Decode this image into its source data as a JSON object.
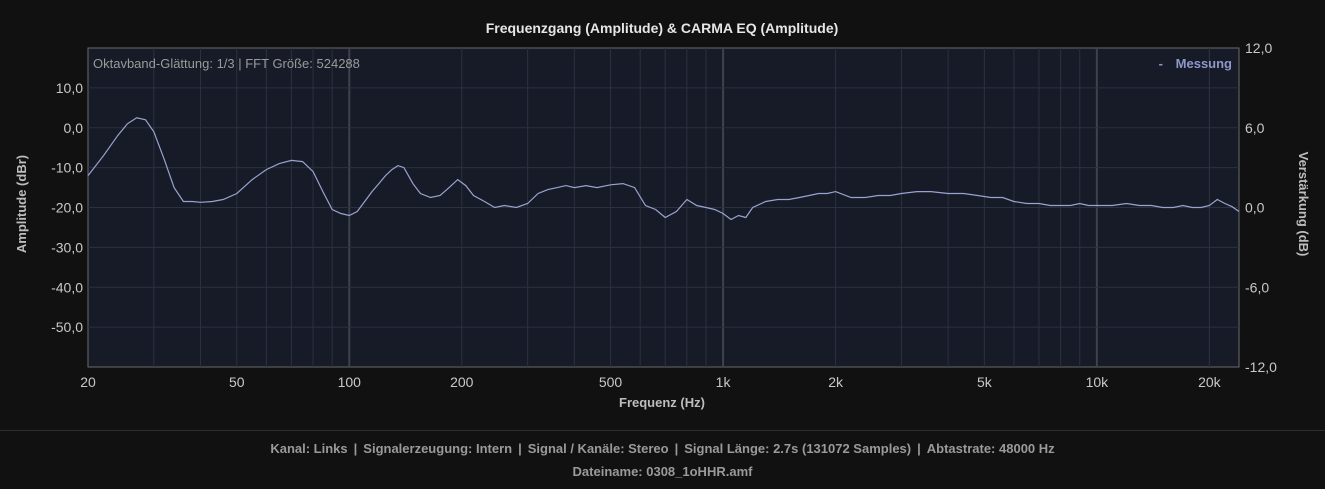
{
  "chart_data": {
    "type": "line",
    "title": "Frequenzgang (Amplitude) & CARMA EQ (Amplitude)",
    "xlabel": "Frequenz (Hz)",
    "ylabel": "Amplitude (dBr)",
    "y2label": "Verstärkung (dB)",
    "x_scale": "log",
    "xlim": [
      20,
      24000
    ],
    "ylim": [
      -60,
      20
    ],
    "y2lim": [
      -12,
      12
    ],
    "x_ticks": [
      20,
      50,
      100,
      200,
      500,
      1000,
      2000,
      5000,
      10000,
      20000
    ],
    "x_tick_labels": [
      "20",
      "50",
      "100",
      "200",
      "500",
      "1k",
      "2k",
      "5k",
      "10k",
      "20k"
    ],
    "y_ticks": [
      10,
      0,
      -10,
      -20,
      -30,
      -40,
      -50
    ],
    "y_tick_labels": [
      "10,0",
      "0,0",
      "-10,0",
      "-20,0",
      "-30,0",
      "-40,0",
      "-50,0"
    ],
    "y2_ticks": [
      12,
      6,
      0,
      -6,
      -12
    ],
    "y2_tick_labels": [
      "12,0",
      "6,0",
      "0,0",
      "-6,0",
      "-12,0"
    ],
    "grid": true,
    "annotation": "Oktavband-Glättung: 1/3 | FFT Größe: 524288",
    "legend_position": "top-right",
    "series": [
      {
        "name": "Messung",
        "color": "#9aa3d0",
        "x": [
          20,
          22,
          24,
          25.5,
          27,
          28.5,
          30,
          32,
          34,
          36,
          38,
          40,
          43,
          46,
          50,
          55,
          60,
          65,
          70,
          75,
          80,
          85,
          90,
          95,
          100,
          105,
          110,
          115,
          120,
          125,
          130,
          135,
          140,
          148,
          155,
          165,
          175,
          185,
          195,
          205,
          215,
          230,
          245,
          260,
          280,
          300,
          320,
          340,
          360,
          380,
          400,
          430,
          460,
          500,
          540,
          580,
          620,
          660,
          700,
          750,
          800,
          850,
          900,
          950,
          1000,
          1050,
          1100,
          1150,
          1200,
          1300,
          1400,
          1500,
          1600,
          1700,
          1800,
          1900,
          2000,
          2200,
          2400,
          2600,
          2800,
          3000,
          3300,
          3600,
          4000,
          4400,
          4800,
          5200,
          5600,
          6000,
          6500,
          7000,
          7500,
          8000,
          8500,
          9000,
          9500,
          10000,
          11000,
          12000,
          13000,
          14000,
          15000,
          16000,
          17000,
          18000,
          19000,
          20000,
          21000,
          22000,
          23000,
          24000
        ],
        "y": [
          -12,
          -7,
          -2,
          1,
          2.5,
          2,
          -1,
          -8,
          -15,
          -18.5,
          -18.5,
          -18.7,
          -18.5,
          -18,
          -16.5,
          -13,
          -10.5,
          -9,
          -8.2,
          -8.5,
          -11,
          -16,
          -20.5,
          -21.5,
          -22,
          -21,
          -18.5,
          -16,
          -14,
          -12,
          -10.5,
          -9.5,
          -10,
          -14,
          -16.5,
          -17.5,
          -17,
          -15,
          -13,
          -14.5,
          -17,
          -18.5,
          -20,
          -19.5,
          -20,
          -19,
          -16.5,
          -15.5,
          -15,
          -14.5,
          -15,
          -14.5,
          -15,
          -14.3,
          -14,
          -15,
          -19.5,
          -20.5,
          -22.5,
          -21,
          -18,
          -19.5,
          -20,
          -20.5,
          -21.5,
          -23,
          -22,
          -22.5,
          -20,
          -18.5,
          -18,
          -18,
          -17.5,
          -17,
          -16.5,
          -16.5,
          -16,
          -17.5,
          -17.5,
          -17,
          -17,
          -16.5,
          -16,
          -16,
          -16.5,
          -16.5,
          -17,
          -17.5,
          -17.5,
          -18.5,
          -19,
          -19,
          -19.5,
          -19.5,
          -19.5,
          -19,
          -19.5,
          -19.5,
          -19.5,
          -19,
          -19.5,
          -19.5,
          -20,
          -20,
          -19.5,
          -20,
          -20,
          -19.5,
          -18,
          -19,
          -19.8,
          -21
        ]
      }
    ]
  },
  "footer": {
    "kanal": "Kanal: Links",
    "signalerzeugung": "Signalerzeugung: Intern",
    "signal_kanaele": "Signal / Kanäle: Stereo",
    "signal_laenge": "Signal Länge: 2.7s (131072 Samples)",
    "abtastrate": "Abtastrate: 48000 Hz",
    "separator": "|",
    "dateiname": "Dateiname: 0308_1oHHR.amf"
  }
}
